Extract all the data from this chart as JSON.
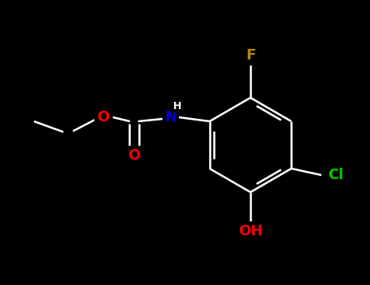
{
  "background_color": "#000000",
  "bond_color": "#ffffff",
  "atom_colors": {
    "O": "#ff0000",
    "N": "#0000cd",
    "F": "#b8860b",
    "Cl": "#00cc00",
    "H": "#ffffff",
    "C": "#ffffff"
  },
  "font_size_atoms": 13,
  "line_width": 1.8,
  "figsize": [
    4.55,
    3.5
  ],
  "dpi": 100
}
